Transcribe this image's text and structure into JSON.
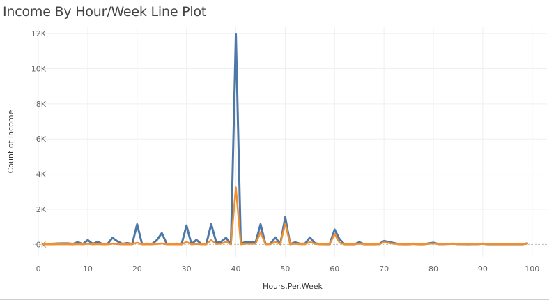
{
  "title": "Income By Hour/Week Line Plot",
  "chart_data": {
    "type": "line",
    "title": "Income By Hour/Week Line Plot",
    "xlabel": "Hours.Per.Week",
    "ylabel": "Count of Income",
    "xlim": [
      -1,
      103
    ],
    "ylim": [
      -700,
      12400
    ],
    "x_ticks": [
      0,
      10,
      20,
      30,
      40,
      50,
      60,
      70,
      80,
      90,
      100
    ],
    "x_tick_labels": [
      "0",
      "10",
      "20",
      "30",
      "40",
      "50",
      "60",
      "70",
      "80",
      "90",
      "100"
    ],
    "y_ticks": [
      0,
      2000,
      4000,
      6000,
      8000,
      10000,
      12000
    ],
    "y_tick_labels": [
      "0K",
      "2K",
      "4K",
      "6K",
      "8K",
      "10K",
      "12K"
    ],
    "grid": true,
    "series": [
      {
        "color": "#4e79a7",
        "x": [
          1,
          2,
          3,
          4,
          5,
          6,
          7,
          8,
          9,
          10,
          11,
          12,
          13,
          14,
          15,
          16,
          17,
          18,
          19,
          20,
          21,
          22,
          23,
          24,
          25,
          26,
          27,
          28,
          29,
          30,
          31,
          32,
          33,
          34,
          35,
          36,
          37,
          38,
          39,
          40,
          41,
          42,
          43,
          44,
          45,
          46,
          47,
          48,
          49,
          50,
          51,
          52,
          53,
          54,
          55,
          56,
          57,
          58,
          59,
          60,
          61,
          62,
          63,
          64,
          65,
          66,
          67,
          68,
          69,
          70,
          72,
          73,
          74,
          75,
          76,
          77,
          78,
          80,
          81,
          82,
          84,
          85,
          86,
          87,
          88,
          89,
          90,
          91,
          92,
          94,
          95,
          96,
          97,
          98,
          99
        ],
        "values": [
          20,
          30,
          40,
          55,
          60,
          60,
          30,
          130,
          20,
          250,
          30,
          150,
          20,
          20,
          380,
          180,
          30,
          80,
          20,
          1150,
          20,
          40,
          20,
          250,
          650,
          30,
          30,
          40,
          10,
          1080,
          20,
          260,
          30,
          20,
          1150,
          150,
          150,
          380,
          20,
          11950,
          40,
          150,
          120,
          120,
          1150,
          20,
          40,
          400,
          20,
          1550,
          20,
          120,
          40,
          40,
          400,
          70,
          20,
          10,
          10,
          850,
          300,
          10,
          10,
          10,
          130,
          10,
          10,
          10,
          20,
          200,
          80,
          20,
          10,
          10,
          40,
          10,
          10,
          100,
          20,
          20,
          40,
          20,
          20,
          10,
          20,
          20,
          40,
          10,
          10,
          10,
          10,
          10,
          10,
          10,
          60
        ]
      },
      {
        "color": "#f28e2b",
        "x": [
          1,
          2,
          3,
          4,
          5,
          6,
          7,
          8,
          9,
          10,
          11,
          12,
          13,
          14,
          15,
          16,
          17,
          18,
          19,
          20,
          21,
          22,
          23,
          24,
          25,
          26,
          27,
          28,
          29,
          30,
          31,
          32,
          33,
          34,
          35,
          36,
          37,
          38,
          39,
          40,
          41,
          42,
          43,
          44,
          45,
          46,
          47,
          48,
          49,
          50,
          51,
          52,
          53,
          54,
          55,
          56,
          57,
          58,
          59,
          60,
          61,
          62,
          63,
          64,
          65,
          66,
          67,
          68,
          69,
          70,
          72,
          73,
          74,
          75,
          76,
          77,
          78,
          80,
          81,
          82,
          84,
          85,
          86,
          87,
          88,
          89,
          90,
          91,
          92,
          94,
          95,
          96,
          97,
          98,
          99
        ],
        "values": [
          5,
          5,
          5,
          10,
          10,
          10,
          5,
          20,
          5,
          40,
          5,
          20,
          5,
          5,
          50,
          20,
          5,
          10,
          5,
          100,
          5,
          5,
          5,
          30,
          60,
          5,
          5,
          5,
          5,
          150,
          5,
          30,
          5,
          5,
          250,
          30,
          40,
          150,
          5,
          3250,
          10,
          40,
          40,
          40,
          700,
          10,
          10,
          150,
          10,
          1200,
          10,
          40,
          10,
          10,
          150,
          30,
          10,
          5,
          5,
          600,
          100,
          5,
          5,
          5,
          50,
          5,
          5,
          5,
          10,
          120,
          40,
          10,
          5,
          5,
          20,
          5,
          5,
          60,
          20,
          20,
          30,
          20,
          20,
          10,
          20,
          20,
          30,
          10,
          10,
          10,
          10,
          10,
          10,
          10,
          40
        ]
      }
    ]
  }
}
